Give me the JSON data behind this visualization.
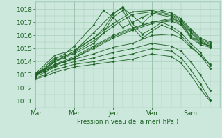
{
  "bg_color": "#cce8dc",
  "grid_color": "#a0c8b4",
  "line_color": "#1a6020",
  "xlabel": "Pression niveau de la mer( hPa )",
  "xlim": [
    0,
    114
  ],
  "ylim": [
    1010.5,
    1018.6
  ],
  "yticks": [
    1011,
    1012,
    1013,
    1014,
    1015,
    1016,
    1017,
    1018
  ],
  "xtick_labels": [
    "Mar",
    "Mer",
    "Jeu",
    "Ven",
    "Sam"
  ],
  "xtick_positions": [
    0,
    24,
    48,
    72,
    96
  ],
  "series": [
    [
      0,
      1013.0,
      6,
      1013.3,
      12,
      1013.7,
      18,
      1014.0,
      24,
      1014.3,
      36,
      1015.0,
      48,
      1015.8,
      60,
      1016.4,
      72,
      1016.9,
      84,
      1017.1,
      90,
      1016.8,
      96,
      1015.8,
      102,
      1015.3,
      108,
      1015.1
    ],
    [
      0,
      1013.0,
      6,
      1013.4,
      12,
      1013.8,
      18,
      1014.1,
      24,
      1014.4,
      36,
      1015.2,
      48,
      1016.0,
      60,
      1016.6,
      72,
      1017.0,
      84,
      1017.3,
      90,
      1017.0,
      96,
      1016.0,
      102,
      1015.5,
      108,
      1015.2
    ],
    [
      0,
      1013.0,
      6,
      1013.3,
      12,
      1013.7,
      18,
      1014.0,
      24,
      1014.3,
      36,
      1015.1,
      48,
      1015.9,
      60,
      1016.5,
      72,
      1017.0,
      84,
      1017.2,
      90,
      1016.9,
      96,
      1015.9,
      102,
      1015.4,
      108,
      1015.2
    ],
    [
      0,
      1013.1,
      6,
      1013.5,
      12,
      1014.0,
      18,
      1014.3,
      24,
      1014.7,
      36,
      1015.6,
      48,
      1016.7,
      60,
      1017.6,
      72,
      1017.8,
      84,
      1017.5,
      90,
      1017.1,
      96,
      1016.3,
      102,
      1015.6,
      108,
      1015.3
    ],
    [
      0,
      1013.1,
      6,
      1013.5,
      12,
      1014.1,
      18,
      1014.4,
      24,
      1014.8,
      36,
      1015.8,
      48,
      1016.9,
      60,
      1017.8,
      72,
      1017.9,
      84,
      1017.6,
      90,
      1017.2,
      96,
      1016.4,
      102,
      1015.7,
      108,
      1015.4
    ],
    [
      0,
      1013.0,
      6,
      1013.4,
      12,
      1014.0,
      18,
      1014.4,
      24,
      1014.8,
      36,
      1016.2,
      48,
      1017.7,
      54,
      1018.1,
      60,
      1017.5,
      66,
      1016.9,
      72,
      1017.6,
      78,
      1017.9,
      84,
      1017.7,
      90,
      1017.3,
      96,
      1016.5,
      102,
      1015.8,
      108,
      1015.5
    ],
    [
      0,
      1013.0,
      6,
      1013.5,
      12,
      1014.2,
      18,
      1014.6,
      24,
      1015.2,
      36,
      1016.8,
      42,
      1017.9,
      48,
      1017.4,
      54,
      1016.6,
      60,
      1017.0,
      66,
      1017.4,
      72,
      1017.7,
      84,
      1017.4,
      90,
      1017.0,
      96,
      1016.2,
      102,
      1015.5,
      108,
      1015.2
    ],
    [
      0,
      1013.0,
      6,
      1013.3,
      12,
      1013.8,
      18,
      1014.0,
      24,
      1014.2,
      36,
      1014.6,
      48,
      1015.1,
      60,
      1015.4,
      72,
      1016.0,
      84,
      1016.1,
      90,
      1015.8,
      96,
      1015.1,
      102,
      1014.5,
      108,
      1013.8
    ],
    [
      0,
      1012.9,
      6,
      1013.2,
      12,
      1013.6,
      18,
      1013.8,
      24,
      1014.0,
      36,
      1014.3,
      48,
      1014.7,
      60,
      1015.0,
      72,
      1015.4,
      84,
      1015.2,
      90,
      1014.8,
      96,
      1014.0,
      102,
      1013.0,
      108,
      1011.8
    ],
    [
      0,
      1012.8,
      6,
      1013.0,
      12,
      1013.4,
      18,
      1013.6,
      24,
      1013.8,
      36,
      1014.0,
      48,
      1014.3,
      60,
      1014.6,
      72,
      1015.0,
      84,
      1014.8,
      90,
      1014.3,
      96,
      1013.4,
      102,
      1012.3,
      108,
      1011.1
    ],
    [
      0,
      1012.7,
      6,
      1012.9,
      12,
      1013.2,
      18,
      1013.4,
      24,
      1013.6,
      36,
      1013.8,
      48,
      1014.0,
      60,
      1014.2,
      72,
      1014.6,
      84,
      1014.4,
      90,
      1013.9,
      96,
      1013.0,
      102,
      1011.9,
      108,
      1011.0
    ],
    [
      0,
      1013.0,
      12,
      1014.3,
      24,
      1014.6,
      36,
      1015.4,
      42,
      1016.2,
      48,
      1017.4,
      54,
      1017.9,
      60,
      1016.6,
      66,
      1015.8,
      72,
      1016.3,
      78,
      1016.8,
      84,
      1016.5,
      90,
      1016.0,
      96,
      1015.2,
      102,
      1014.5,
      108,
      1013.5
    ],
    [
      0,
      1013.1,
      12,
      1014.5,
      24,
      1014.9,
      36,
      1015.8,
      42,
      1016.5,
      48,
      1017.6,
      54,
      1018.2,
      60,
      1016.9,
      66,
      1016.1,
      72,
      1016.5,
      78,
      1017.0,
      84,
      1016.7,
      90,
      1016.2,
      96,
      1015.4,
      102,
      1014.7,
      108,
      1013.7
    ]
  ]
}
